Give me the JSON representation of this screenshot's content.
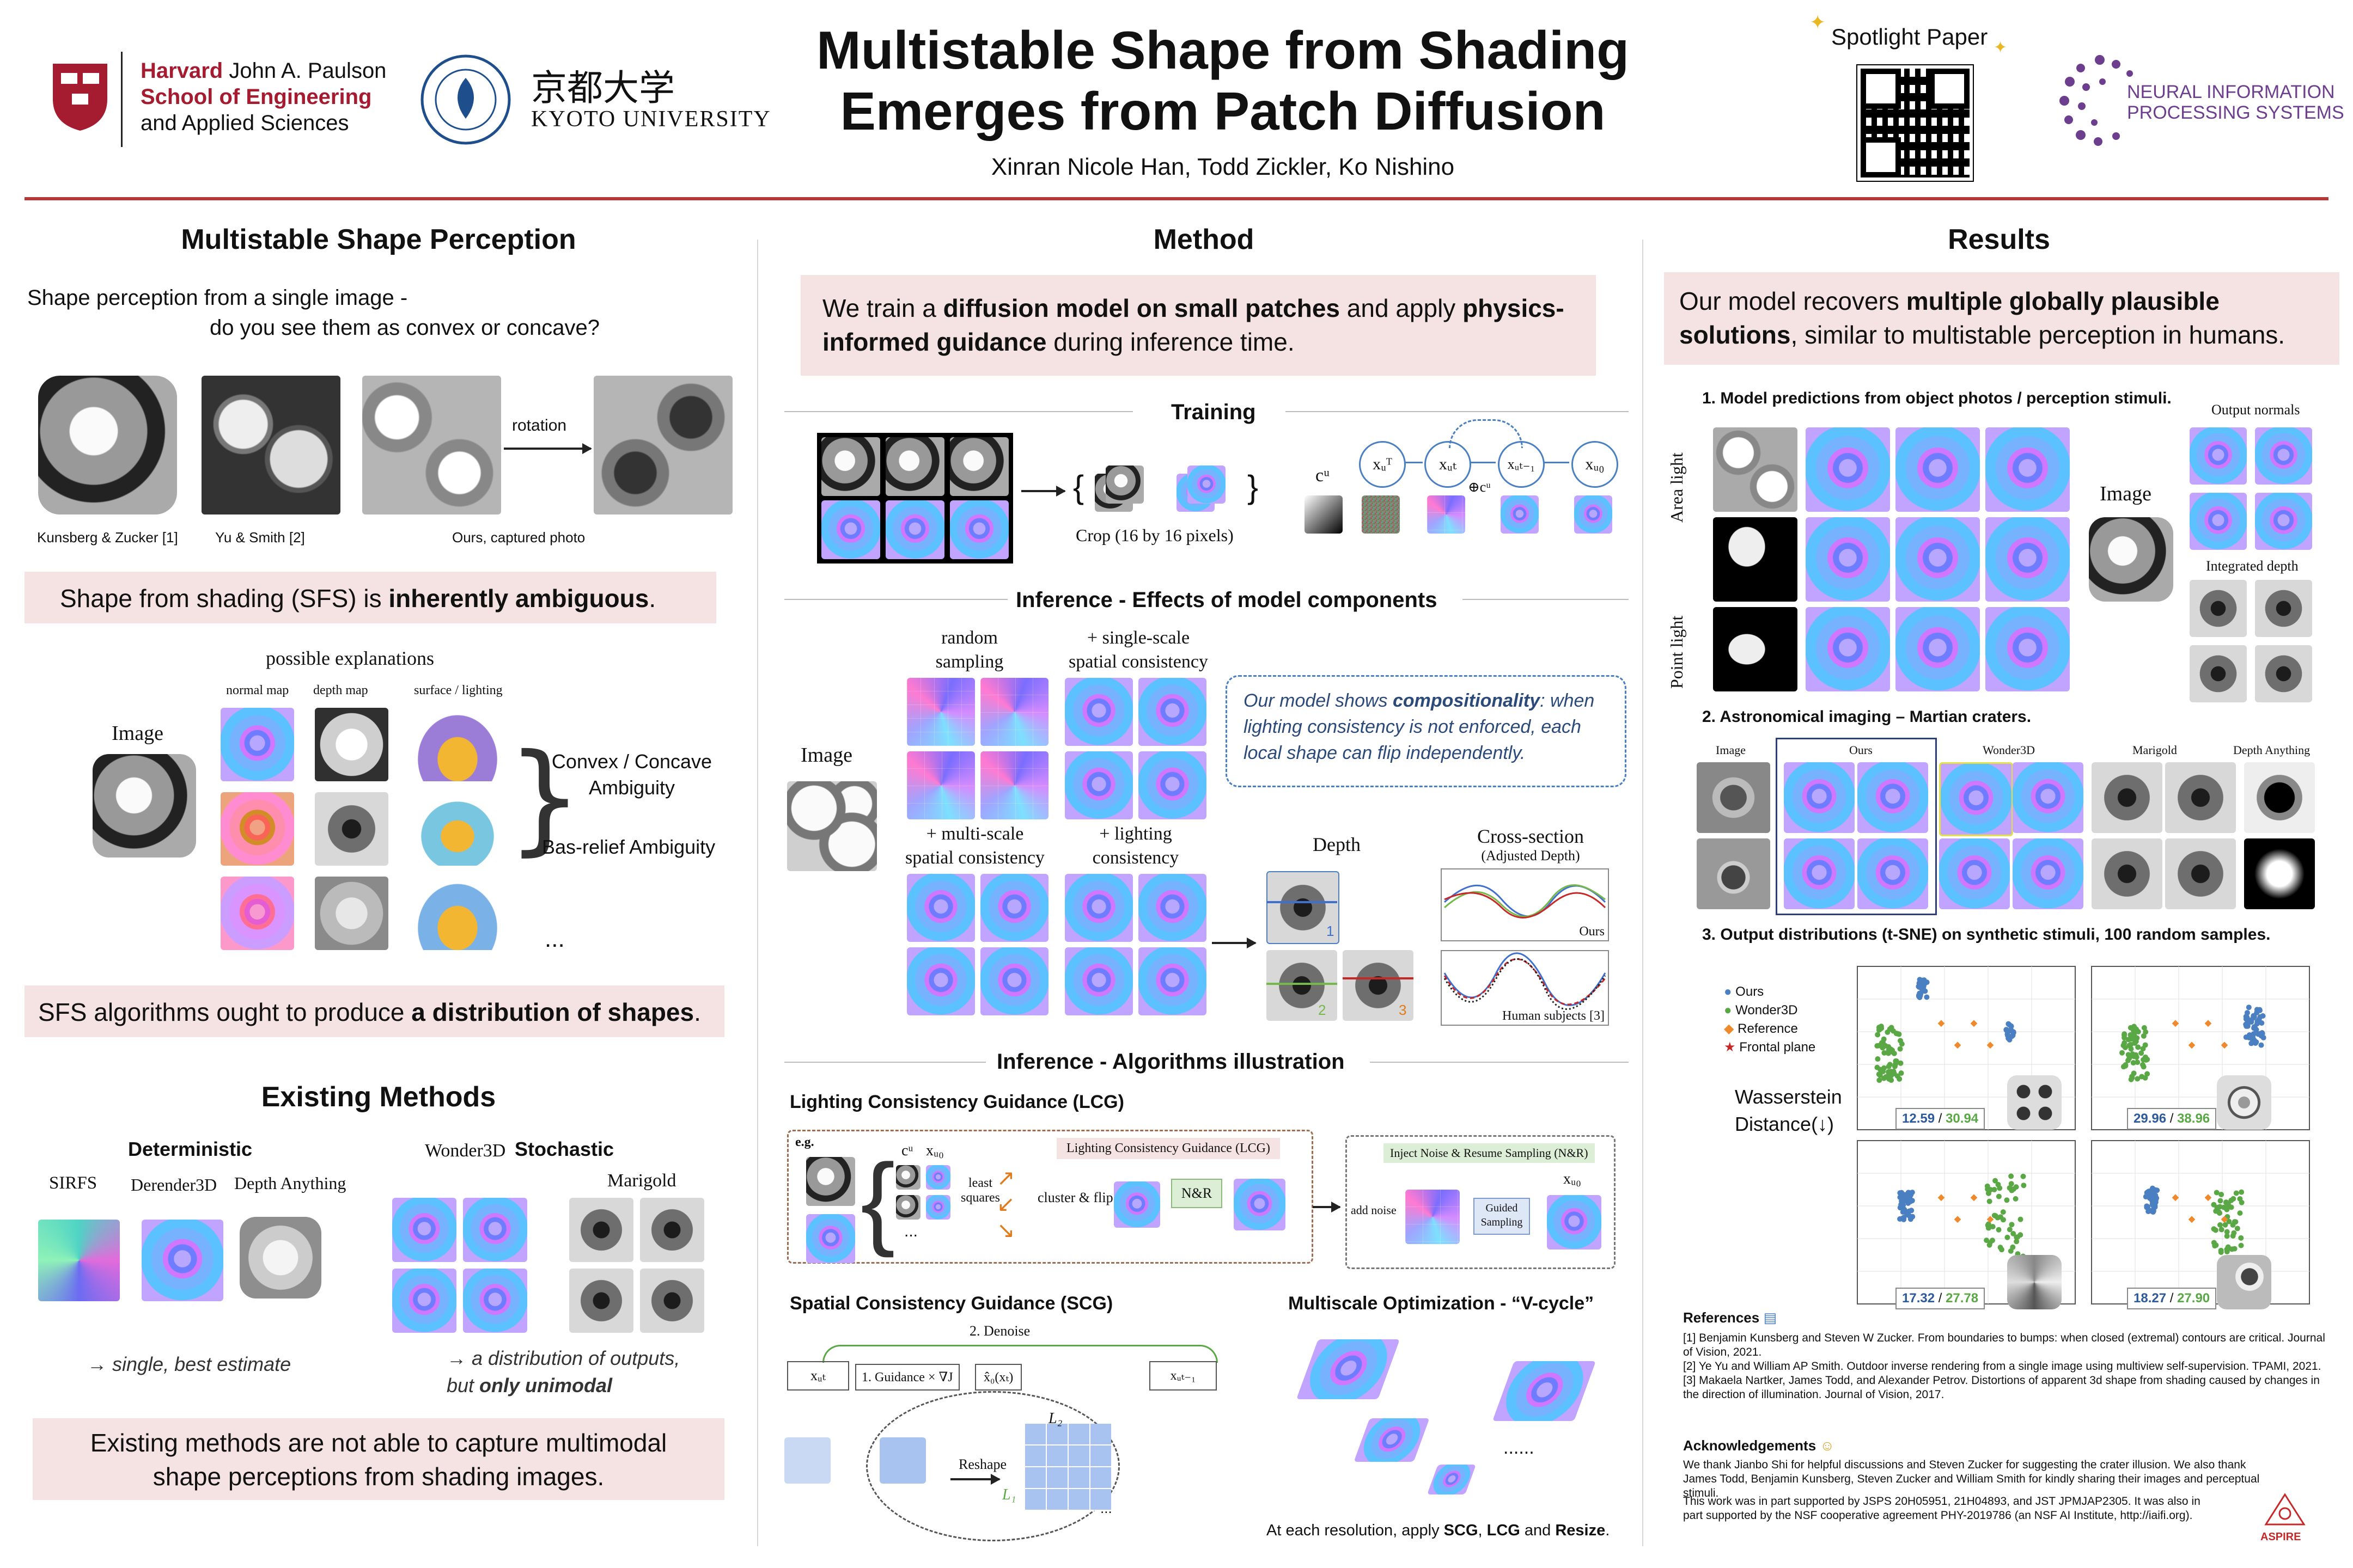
{
  "header": {
    "harvard_line1a": "Harvard",
    "harvard_line1b": "John A. Paulson",
    "harvard_line2": "School of Engineering",
    "harvard_line3": "and Applied Sciences",
    "kyoto_kanji": "京都大学",
    "kyoto_name": "KYOTO UNIVERSITY",
    "title_line1": "Multistable Shape from Shading",
    "title_line2": "Emerges from Patch Diffusion",
    "authors": "Xinran Nicole Han, Todd Zickler, Ko Nishino",
    "spotlight": "Spotlight Paper",
    "neurips_line1": "NEURAL INFORMATION",
    "neurips_line2": "PROCESSING SYSTEMS"
  },
  "left": {
    "section1_title": "Multistable Shape Perception",
    "intro_line1": "Shape perception from a single image -",
    "intro_line2": "do you see them as convex or concave?",
    "rotation_label": "rotation",
    "caption1": "Kunsberg & Zucker [1]",
    "caption2": "Yu & Smith [2]",
    "caption3": "Ours, captured photo",
    "box1_prefix": "Shape from shading (SFS) is ",
    "box1_bold": "inherently ambiguous",
    "box1_suffix": ".",
    "possible_explanations": "possible explanations",
    "col_normal": "normal map",
    "col_depth": "depth map",
    "col_surface": "surface / lighting",
    "image_label": "Image",
    "ambiguity1_line1": "Convex / Concave",
    "ambiguity1_line2": "Ambiguity",
    "ambiguity2": "Bas-relief Ambiguity",
    "ellipsis": "...",
    "box2_prefix": "SFS algorithms ought to produce ",
    "box2_bold": "a distribution of shapes",
    "box2_suffix": ".",
    "section2_title": "Existing Methods",
    "deterministic": "Deterministic",
    "stochastic": "Stochastic",
    "m_sirfs": "SIRFS",
    "m_derender": "Derender3D",
    "m_depthanything": "Depth Anything",
    "m_wonder": "Wonder3D",
    "m_marigold": "Marigold",
    "det_note": "→ single, best estimate",
    "sto_note1": "→ a distribution of outputs,",
    "sto_note2a": "but ",
    "sto_note2b": "only unimodal",
    "box3_line1": "Existing methods are not able to capture multimodal",
    "box3_line2": "shape perceptions from shading images."
  },
  "method": {
    "title": "Method",
    "box_text_1": "We train a ",
    "box_bold_1": "diffusion model on small patches",
    "box_text_2": " and apply ",
    "box_bold_2": "physics-",
    "box_bold_3": "informed guidance",
    "box_text_3": " during inference time.",
    "training_title": "Training",
    "crop_label": "Crop (16 by 16 pixels)",
    "cu": "cᵘ",
    "xT": "xᵤᵀ",
    "xt": "xᵤₜ",
    "xt1": "xᵤₜ₋₁",
    "x0": "xᵤ₀",
    "plus_cu": "⊕cᵘ",
    "inference_title": "Inference - Effects of model components",
    "image_label": "Image",
    "comp1_line1": "random",
    "comp1_line2": "sampling",
    "comp2_line1": "+ single-scale",
    "comp2_line2": "spatial consistency",
    "comp3_line1": "+ multi-scale",
    "comp3_line2": "spatial consistency",
    "comp4_line1": "+ lighting",
    "comp4_line2": "consistency",
    "compositional_1": "Our model shows ",
    "compositional_bold": "compositionality",
    "compositional_2": ": when lighting consistency is not enforced, each local shape can flip independently.",
    "depth_label": "Depth",
    "cross_title": "Cross-section",
    "cross_sub": "(Adjusted Depth)",
    "ours_label": "Ours",
    "human_label": "Human subjects [3]",
    "num1": "1",
    "num2": "2",
    "num3": "3",
    "alg_title": "Inference - Algorithms illustration",
    "lcg_title": "Lighting Consistency Guidance (LCG)",
    "eg": "e.g.",
    "lcg_box_label": "Lighting Consistency Guidance (LCG)",
    "least_squares": "least squares",
    "cluster_flip": "cluster & flip",
    "nr": "N&R",
    "inject_label": "Inject Noise & Resume Sampling (N&R)",
    "add_noise": "add noise",
    "guided_sampling": "Guided Sampling",
    "scg_title": "Spatial Consistency Guidance (SCG)",
    "denoise": "2. Denoise",
    "guidance": "1. Guidance × ∇J",
    "x0hat": "x̂₀(xₜ)",
    "reshape": "Reshape",
    "l1": "L₁",
    "l2": "L₂",
    "dots": "...",
    "vcycle_title": "Multiscale Optimization - “V-cycle”",
    "vcycle_dots": "......",
    "vcycle_note_1": "At each resolution, apply ",
    "vcycle_bold_1": "SCG",
    "vcycle_note_2": ", ",
    "vcycle_bold_2": "LCG",
    "vcycle_note_3": " and ",
    "vcycle_bold_3": "Resize",
    "vcycle_note_4": "."
  },
  "results": {
    "title": "Results",
    "box_text_1": "Our model recovers ",
    "box_bold_1": "multiple globally plausible",
    "box_bold_2": "solutions",
    "box_text_2": ", similar to multistable perception in humans.",
    "sub1": "1. Model predictions from object photos / perception stimuli.",
    "area_light": "Area light",
    "point_light": "Point light",
    "image_label": "Image",
    "output_normals": "Output normals",
    "integrated_depth": "Integrated depth",
    "sub2": "2. Astronomical imaging – Martian craters.",
    "col_image": "Image",
    "col_ours": "Ours",
    "col_wonder": "Wonder3D",
    "col_marigold": "Marigold",
    "col_depthany": "Depth Anything",
    "sub3": "3. Output distributions (t-SNE) on synthetic stimuli, 100 random samples.",
    "legend": [
      "Ours",
      "Wonder3D",
      "Reference",
      "Frontal plane"
    ],
    "wasserstein_1": "Wasserstein",
    "wasserstein_2": "Distance(↓)",
    "score1a": "12.59",
    "score1b": "30.94",
    "score2a": "29.96",
    "score2b": "38.96",
    "score3a": "17.32",
    "score3b": "27.78",
    "score4a": "18.27",
    "score4b": "27.90",
    "refs_title": "References",
    "ref1": "[1] Benjamin Kunsberg and Steven W Zucker. From boundaries to bumps: when closed (extremal) contours are critical. Journal of Vision, 2021.",
    "ref2": "[2] Ye Yu and William AP Smith. Outdoor inverse rendering from a single image using multiview self-supervision. TPAMI, 2021.",
    "ref3": "[3] Makaela Nartker, James Todd, and Alexander Petrov. Distortions of apparent 3d shape from shading caused by changes in the direction of illumination. Journal of Vision, 2017.",
    "ack_title": "Acknowledgements",
    "ack_text": "We thank Jianbo Shi for helpful discussions and Steven Zucker for suggesting the crater illusion. We also thank James Todd, Benjamin Kunsberg, Steven Zucker and William Smith for kindly sharing their images and perceptual stimuli.",
    "funding_1": "This work was in part supported by JSPS 20H05951, 21H04893, and JST JPMJAP2305. It was also in",
    "funding_2": "part supported by the NSF cooperative agreement PHY-2019786 (an NSF AI Institute, http://iaifi.org).",
    "aspire": "ASPIRE"
  },
  "colors": {
    "accent_red": "#b33a3a",
    "pink_box": "#f5e3e3",
    "ours_blue": "#4a7fc1",
    "wonder_green": "#5aa845",
    "reference_orange": "#ef8a2c",
    "frontal_red": "#c62828",
    "neurips_purple": "#6d3e8e"
  }
}
